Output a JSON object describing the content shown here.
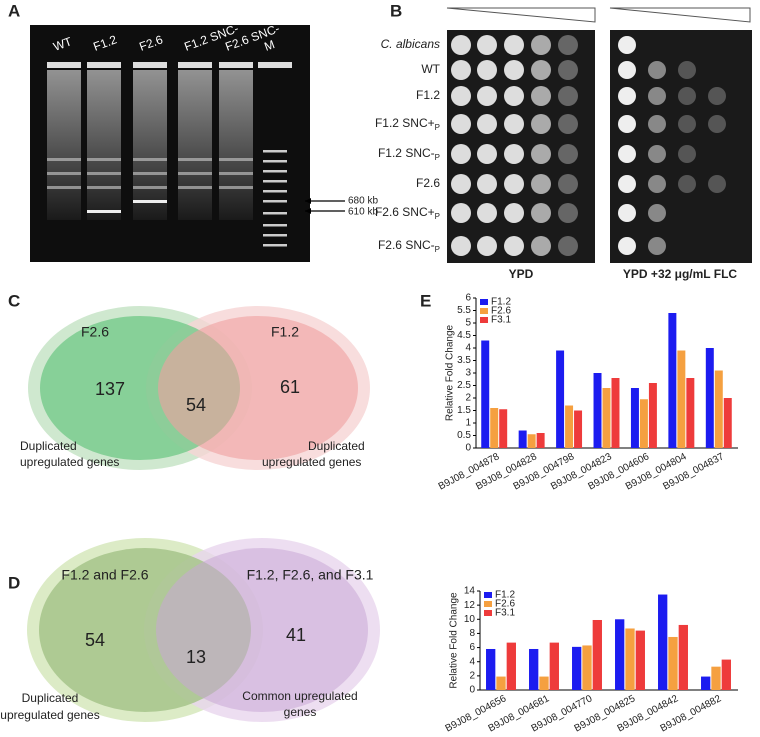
{
  "panel_labels": [
    "A",
    "B",
    "C",
    "D",
    "E"
  ],
  "gel": {
    "lanes": [
      "WT",
      "F1.2",
      "F2.6",
      "F1.2 SNC-",
      "F2.6 SNC-",
      "M"
    ],
    "markers": [
      "680 kb",
      "610 kb"
    ]
  },
  "spot_assay": {
    "strains": [
      {
        "name": "C. albicans"
      },
      {
        "name": "WT"
      },
      {
        "name": "F1.2"
      },
      {
        "name": "F1.2  SNC+",
        "sub": "P"
      },
      {
        "name": "F1.2  SNC-",
        "sub": "P"
      },
      {
        "name": "F2.6"
      },
      {
        "name": "F2.6  SNC+",
        "sub": "P"
      },
      {
        "name": "F2.6  SNC-",
        "sub": "P"
      }
    ],
    "conditions": [
      "YPD",
      "YPD +32 μg/mL FLC"
    ]
  },
  "venn_c": {
    "left": {
      "title": "F2.6",
      "count": 137,
      "caption": [
        "Duplicated",
        "upregulated genes"
      ]
    },
    "overlap": 54,
    "right": {
      "title": "F1.2",
      "count": 61,
      "caption": [
        "Duplicated",
        "upregulated genes"
      ]
    }
  },
  "venn_d": {
    "left": {
      "title": "F1.2 and F2.6",
      "count": 54,
      "caption": [
        "Duplicated",
        "upregulated genes"
      ]
    },
    "overlap": 13,
    "right": {
      "title": "F1.2, F2.6, and F3.1",
      "count": 41,
      "caption": [
        "Common upregulated",
        "genes"
      ]
    }
  },
  "chart_data": [
    {
      "type": "bar",
      "ylabel": "Relative Fold Change",
      "categories": [
        "B9J08_004878",
        "B9J08_004828",
        "B9J08_004798",
        "B9J08_004823",
        "B9J08_004606",
        "B9J08_004804",
        "B9J08_004837"
      ],
      "series": [
        {
          "name": "F1.2",
          "color": "#1c1cf0",
          "values": [
            4.3,
            0.7,
            3.9,
            3.0,
            2.4,
            5.4,
            4.0
          ]
        },
        {
          "name": "F2.6",
          "color": "#f5a040",
          "values": [
            1.6,
            0.55,
            1.7,
            2.4,
            1.95,
            3.9,
            3.1
          ]
        },
        {
          "name": "F3.1",
          "color": "#ee3b3b",
          "values": [
            1.55,
            0.6,
            1.5,
            2.8,
            2.6,
            2.8,
            2.0
          ]
        }
      ],
      "ylim": [
        0,
        6
      ],
      "yticks": [
        0,
        0.5,
        1,
        1.5,
        2,
        2.5,
        3,
        3.5,
        4,
        4.5,
        5,
        5.5,
        6
      ],
      "legend": "upper-left"
    },
    {
      "type": "bar",
      "ylabel": "Relative Fold Change",
      "categories": [
        "B9J08_004656",
        "B9J08_004681",
        "B9J08_004770",
        "B9J08_004825",
        "B9J08_004842",
        "B9J08_004882"
      ],
      "series": [
        {
          "name": "F1.2",
          "color": "#1c1cf0",
          "values": [
            5.8,
            5.8,
            6.1,
            10.0,
            13.5,
            1.9
          ]
        },
        {
          "name": "F2.6",
          "color": "#f5a040",
          "values": [
            1.9,
            1.9,
            6.3,
            8.7,
            7.5,
            3.3
          ]
        },
        {
          "name": "F3.1",
          "color": "#ee3b3b",
          "values": [
            6.7,
            6.7,
            9.9,
            8.4,
            9.2,
            4.3
          ]
        }
      ],
      "ylim": [
        0,
        14
      ],
      "yticks": [
        0,
        2,
        4,
        6,
        8,
        10,
        12,
        14
      ],
      "legend": "upper-left"
    }
  ]
}
